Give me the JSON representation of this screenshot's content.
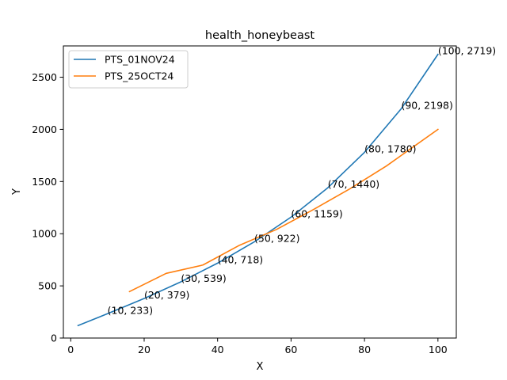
{
  "chart_data": {
    "type": "line",
    "title": "health_honeybeast",
    "xlabel": "X",
    "ylabel": "Y",
    "xlim": [
      -2,
      105
    ],
    "ylim": [
      0,
      2800
    ],
    "xticks": [
      0,
      20,
      40,
      60,
      80,
      100
    ],
    "yticks": [
      0,
      500,
      1000,
      1500,
      2000,
      2500
    ],
    "grid": false,
    "legend": "top-left",
    "series": [
      {
        "name": "PTS_01NOV24",
        "color": "#1f77b4",
        "x": [
          2,
          10,
          20,
          30,
          40,
          50,
          60,
          70,
          80,
          90,
          100
        ],
        "y": [
          120,
          233,
          379,
          539,
          718,
          922,
          1159,
          1440,
          1780,
          2198,
          2719
        ]
      },
      {
        "name": "PTS_25OCT24",
        "color": "#ff7f0e",
        "x": [
          16,
          26,
          36,
          46,
          56,
          66,
          76,
          86,
          100
        ],
        "y": [
          445,
          620,
          700,
          890,
          1040,
          1230,
          1430,
          1650,
          2000
        ]
      }
    ],
    "annotations": [
      {
        "x": 10,
        "y": 233,
        "text": "(10, 233)"
      },
      {
        "x": 20,
        "y": 379,
        "text": "(20, 379)"
      },
      {
        "x": 30,
        "y": 539,
        "text": "(30, 539)"
      },
      {
        "x": 40,
        "y": 718,
        "text": "(40, 718)"
      },
      {
        "x": 50,
        "y": 922,
        "text": "(50, 922)"
      },
      {
        "x": 60,
        "y": 1159,
        "text": "(60, 1159)"
      },
      {
        "x": 70,
        "y": 1440,
        "text": "(70, 1440)"
      },
      {
        "x": 80,
        "y": 1780,
        "text": "(80, 1780)"
      },
      {
        "x": 90,
        "y": 2198,
        "text": "(90, 2198)"
      },
      {
        "x": 100,
        "y": 2719,
        "text": "(100, 2719)"
      }
    ]
  }
}
